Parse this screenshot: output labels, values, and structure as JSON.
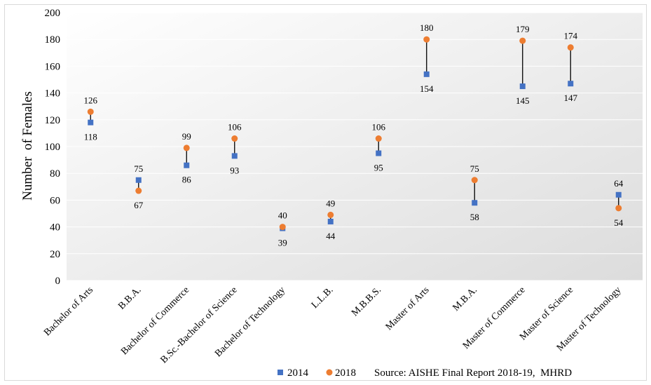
{
  "chart_data": {
    "type": "scatter",
    "subtype": "dumbbell",
    "title": "",
    "xlabel": "",
    "ylabel": "Number  of Females",
    "ylim": [
      0,
      200
    ],
    "ytick_step": 20,
    "grid": true,
    "legend_position": "bottom",
    "categories": [
      "Bachelor of Arts",
      "B.B.A.",
      "Bachelor of Commerce",
      "B.Sc.-Bachelor of Science",
      "Bachelor of Technology",
      "L.L.B.",
      "M.B.B.S.",
      "Master of Arts",
      "M.B.A.",
      "Master of Commerce",
      "Master of Science",
      "Master of Technology"
    ],
    "series": [
      {
        "name": "2014",
        "marker": "square",
        "color": "#4472c4",
        "values": [
          118,
          75,
          86,
          93,
          39,
          44,
          95,
          154,
          58,
          145,
          147,
          64
        ]
      },
      {
        "name": "2018",
        "marker": "circle",
        "color": "#ed7d31",
        "values": [
          126,
          67,
          99,
          106,
          40,
          49,
          106,
          180,
          75,
          179,
          174,
          54
        ]
      }
    ],
    "source": "Source: AISHE Final Report 2018-19,  MHRD"
  },
  "colors": {
    "plot_bg_light": "#ffffff",
    "plot_bg_dark": "#dcdcdc",
    "gridline": "#ffffff",
    "connector": "#000000"
  }
}
